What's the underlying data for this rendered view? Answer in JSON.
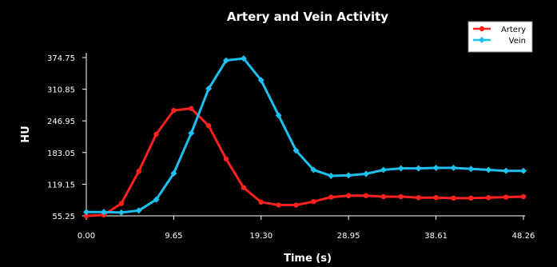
{
  "chart_data": {
    "type": "line",
    "title": "Artery and Vein Activity",
    "xlabel": "Time (s)",
    "ylabel": "HU",
    "xlim": [
      0,
      48.26
    ],
    "ylim": [
      55.25,
      374.75
    ],
    "xticks": [
      "0.00",
      "9.65",
      "19.30",
      "28.95",
      "38.61",
      "48.26"
    ],
    "yticks": [
      "55.25",
      "119.15",
      "183.05",
      "246.95",
      "310.85",
      "374.75"
    ],
    "grid": false,
    "legend_position": "top-right",
    "series": [
      {
        "name": "Artery",
        "color": "#ff2020",
        "marker": "circle",
        "x": [
          0,
          1.93,
          3.86,
          5.79,
          7.72,
          9.65,
          11.58,
          13.51,
          15.44,
          17.37,
          19.3,
          21.23,
          23.16,
          25.09,
          27.02,
          28.95,
          30.88,
          32.81,
          34.74,
          36.67,
          38.61,
          40.54,
          42.47,
          44.4,
          46.33,
          48.26
        ],
        "values": [
          55,
          57,
          80,
          145,
          220,
          268,
          272,
          237,
          170,
          112,
          83,
          77,
          77,
          84,
          93,
          96,
          96,
          94,
          94,
          92,
          92,
          91,
          91,
          92,
          93,
          94
        ]
      },
      {
        "name": "Vein",
        "color": "#1ec0f0",
        "marker": "diamond",
        "x": [
          0,
          1.93,
          3.86,
          5.79,
          7.72,
          9.65,
          11.58,
          13.51,
          15.44,
          17.37,
          19.3,
          21.23,
          23.16,
          25.09,
          27.02,
          28.95,
          30.88,
          32.81,
          34.74,
          36.67,
          38.61,
          40.54,
          42.47,
          44.4,
          46.33,
          48.26
        ],
        "values": [
          63,
          63,
          62,
          66,
          88,
          141,
          222,
          312,
          369,
          373,
          329,
          258,
          187,
          148,
          136,
          137,
          140,
          148,
          151,
          151,
          152,
          152,
          150,
          148,
          146,
          146
        ]
      }
    ]
  }
}
